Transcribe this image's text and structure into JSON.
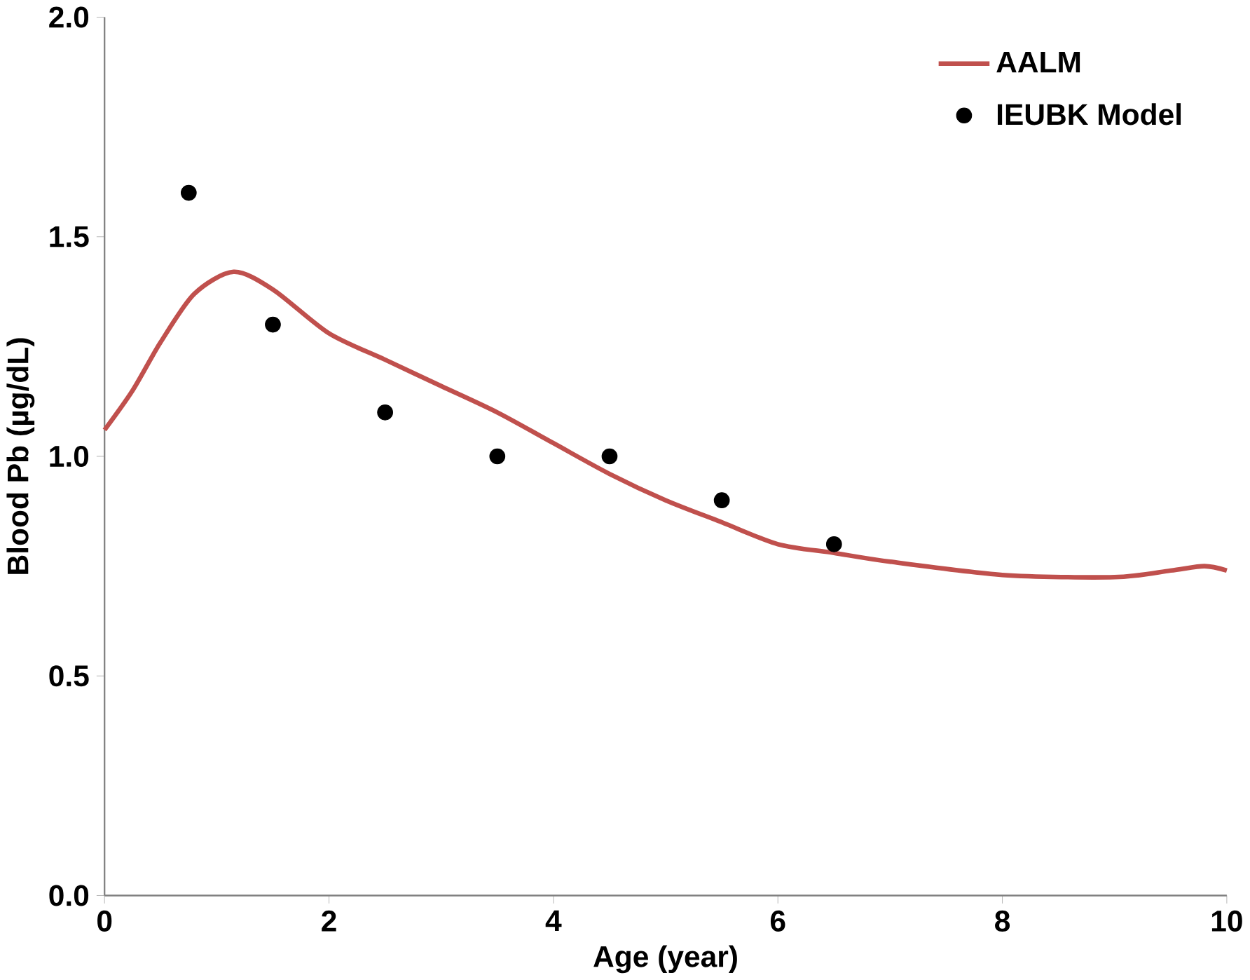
{
  "chart_data": {
    "type": "line",
    "xlabel": "Age (year)",
    "ylabel": "Blood Pb (µg/dL)",
    "xlim": [
      0,
      10
    ],
    "ylim": [
      0,
      2.0
    ],
    "xticks": [
      0,
      2,
      4,
      6,
      8,
      10
    ],
    "yticks": [
      {
        "value": 0,
        "label": "0.0"
      },
      {
        "value": 0.5,
        "label": "0.5"
      },
      {
        "value": 1.0,
        "label": "1.0"
      },
      {
        "value": 1.5,
        "label": "1.5"
      },
      {
        "value": 2.0,
        "label": "2.0"
      }
    ],
    "legend": "top right",
    "grid": false,
    "series": [
      {
        "name": "AALM",
        "color": "#c0504d",
        "marker": "none",
        "x": [
          0,
          0.25,
          0.5,
          0.8,
          1.15,
          1.5,
          2,
          2.5,
          3,
          3.5,
          4,
          4.5,
          5,
          5.5,
          6,
          6.5,
          7,
          8,
          9,
          9.5,
          9.8,
          10
        ],
        "values": [
          1.06,
          1.15,
          1.26,
          1.37,
          1.42,
          1.38,
          1.28,
          1.22,
          1.16,
          1.1,
          1.03,
          0.96,
          0.9,
          0.85,
          0.8,
          0.78,
          0.76,
          0.73,
          0.725,
          0.74,
          0.75,
          0.74
        ]
      },
      {
        "name": "IEUBK Model",
        "type": "scatter",
        "color": "#000000",
        "marker": "circle",
        "x": [
          0.75,
          1.5,
          2.5,
          3.5,
          4.5,
          5.5,
          6.5
        ],
        "values": [
          1.6,
          1.3,
          1.1,
          1.0,
          1.0,
          0.9,
          0.8
        ]
      }
    ]
  }
}
